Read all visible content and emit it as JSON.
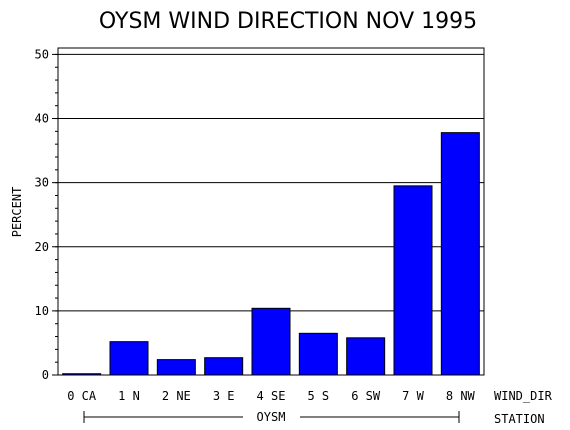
{
  "chart_data": {
    "type": "bar",
    "title": "OYSM WIND DIRECTION NOV 1995",
    "ylabel": "PERCENT",
    "xlabel": "WIND_DIR",
    "group_axis_label": "STATION",
    "group_label": "OYSM",
    "ylim": [
      0,
      51
    ],
    "yticks": [
      0,
      10,
      20,
      30,
      40,
      50
    ],
    "grid": true,
    "categories": [
      "0 CA",
      "1 N",
      "2 NE",
      "3 E",
      "4 SE",
      "5 S",
      "6 SW",
      "7 W",
      "8 NW"
    ],
    "values": [
      0.2,
      5.2,
      2.4,
      2.7,
      10.4,
      6.5,
      5.8,
      29.5,
      37.8
    ],
    "bar_color": "#0000ff"
  }
}
